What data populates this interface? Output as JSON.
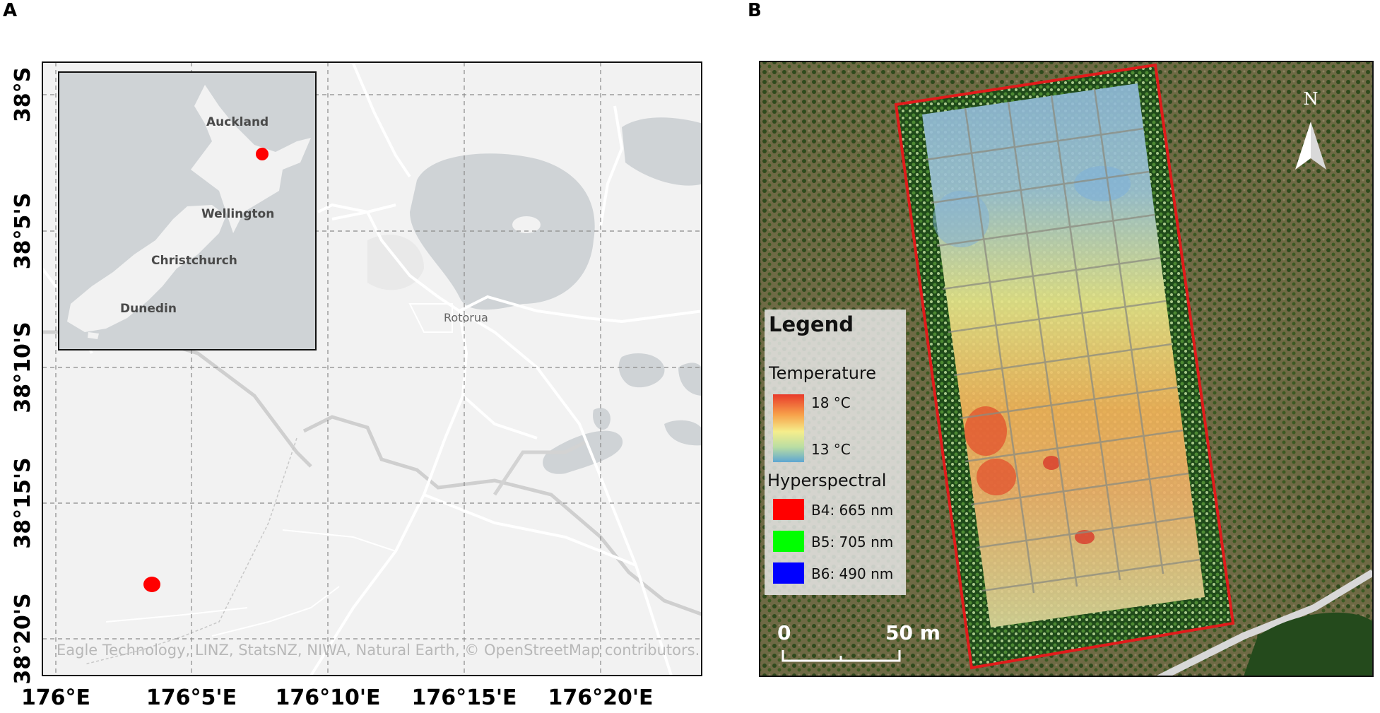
{
  "panels": {
    "a_label": "A",
    "b_label": "B"
  },
  "map_a": {
    "y_ticks": [
      "38°S",
      "38°5'S",
      "38°10'S",
      "38°15'S",
      "38°20'S"
    ],
    "x_ticks": [
      "176°E",
      "176°5'E",
      "176°10'E",
      "176°15'E",
      "176°20'E"
    ],
    "town": "Rotorua",
    "attribution": "Eagle Technology, LINZ, StatsNZ, NIWA, Natural Earth,  © OpenStreetMap contributors.",
    "inset": {
      "cities": [
        "Auckland",
        "Wellington",
        "Christchurch",
        "Dunedin"
      ]
    },
    "marker_color": "#ff0000",
    "land_color": "#f2f2f2",
    "water_color": "#cfd3d6"
  },
  "map_b": {
    "north_label": "N",
    "scale_start": "0",
    "scale_end": "50  m",
    "boundary_color": "#e01b1b",
    "legend": {
      "title": "Legend",
      "temperature_title": "Temperature",
      "temp_high": "18 °C",
      "temp_low": "13 °C",
      "hyperspectral_title": "Hyperspectral",
      "bands": [
        {
          "label": "B4: 665 nm",
          "color": "#ff0000"
        },
        {
          "label": "B5: 705 nm",
          "color": "#00ff00"
        },
        {
          "label": "B6: 490 nm",
          "color": "#0000ff"
        }
      ]
    }
  }
}
